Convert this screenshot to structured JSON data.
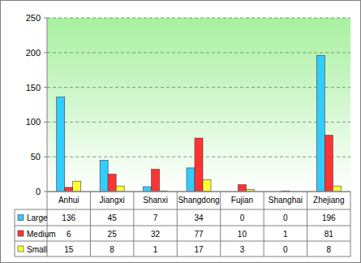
{
  "chart_data": {
    "type": "bar",
    "categories": [
      "Anhui",
      "Jiangxi",
      "Shanxi",
      "Shangdong",
      "Fujian",
      "Shanghai",
      "Zhejiang"
    ],
    "series": [
      {
        "name": "Large",
        "color": "#33ccff",
        "values": [
          136,
          45,
          7,
          34,
          0,
          0,
          196
        ]
      },
      {
        "name": "Medium",
        "color": "#ff3333",
        "values": [
          6,
          25,
          32,
          77,
          10,
          1,
          81
        ]
      },
      {
        "name": "Small",
        "color": "#ffff33",
        "values": [
          15,
          8,
          1,
          17,
          3,
          0,
          8
        ]
      }
    ],
    "ylim": [
      0,
      250
    ],
    "yticks": [
      0,
      50,
      100,
      150,
      200,
      250
    ],
    "grid": true
  }
}
